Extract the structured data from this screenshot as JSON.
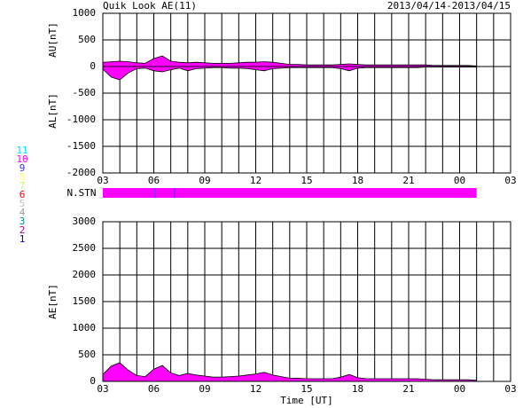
{
  "title": "Quik Look AE(11)",
  "date_range": "2013/04/14-2013/04/15",
  "station_legend": [
    {
      "label": "11",
      "color": "#00e0ff"
    },
    {
      "label": "10",
      "color": "#ff00ff"
    },
    {
      "label": "9",
      "color": "#3030ff"
    },
    {
      "label": "8",
      "color": "#ffff80"
    },
    {
      "label": "7",
      "color": "#c0ff60"
    },
    {
      "label": "6",
      "color": "#ff0000"
    },
    {
      "label": "5",
      "color": "#c0c0c0"
    },
    {
      "label": "4",
      "color": "#a0a0a0"
    },
    {
      "label": "3",
      "color": "#009090"
    },
    {
      "label": "2",
      "color": "#a000a0"
    },
    {
      "label": "1",
      "color": "#0000c0"
    }
  ],
  "stations": {
    "label": "N.STN",
    "segments": [
      {
        "start": 3,
        "end": 6.05,
        "count": 10
      },
      {
        "start": 6.05,
        "end": 6.12,
        "count": 9
      },
      {
        "start": 6.12,
        "end": 7.2,
        "count": 10
      },
      {
        "start": 7.2,
        "end": 7.27,
        "count": 9
      },
      {
        "start": 7.27,
        "end": 25,
        "count": 10
      }
    ]
  },
  "chart_data": [
    {
      "type": "area",
      "color": "#ff00ff",
      "grid": true,
      "x": [
        3,
        3.5,
        4,
        4.5,
        5,
        5.5,
        6,
        6.5,
        7,
        7.5,
        8,
        8.5,
        9,
        9.5,
        10,
        10.5,
        11,
        11.5,
        12,
        12.5,
        13,
        13.5,
        14,
        14.5,
        15,
        15.5,
        16,
        16.5,
        17,
        17.5,
        18,
        18.5,
        19,
        19.5,
        20,
        20.5,
        21,
        21.5,
        22,
        22.5,
        23,
        23.5,
        24,
        24.5,
        25
      ],
      "series": [
        {
          "name": "AU[nT]",
          "values": [
            80,
            90,
            100,
            90,
            70,
            60,
            150,
            200,
            100,
            80,
            70,
            80,
            70,
            60,
            60,
            60,
            70,
            80,
            80,
            90,
            80,
            60,
            40,
            40,
            30,
            30,
            30,
            30,
            40,
            50,
            40,
            30,
            30,
            30,
            30,
            30,
            30,
            30,
            30,
            20,
            20,
            20,
            20,
            20,
            10
          ]
        },
        {
          "name": "AL[nT]",
          "values": [
            -50,
            -200,
            -250,
            -120,
            -40,
            -30,
            -80,
            -100,
            -60,
            -30,
            -80,
            -40,
            -30,
            -20,
            -20,
            -30,
            -30,
            -40,
            -60,
            -80,
            -40,
            -30,
            -20,
            -20,
            -20,
            -20,
            -20,
            -20,
            -40,
            -80,
            -30,
            -20,
            -20,
            -20,
            -20,
            -20,
            -20,
            -20,
            -10,
            -10,
            -10,
            -10,
            -10,
            -10,
            -10
          ]
        }
      ],
      "xlim": [
        3,
        27
      ],
      "xticks": [
        {
          "value": 3,
          "label": "03"
        },
        {
          "value": 6,
          "label": "06"
        },
        {
          "value": 9,
          "label": "09"
        },
        12,
        15,
        18,
        21,
        {
          "value": 24,
          "label": "00"
        },
        {
          "value": 27,
          "label": "03"
        }
      ],
      "xgrid": [
        3,
        4,
        5,
        6,
        7,
        8,
        9,
        10,
        11,
        12,
        13,
        14,
        15,
        16,
        17,
        18,
        19,
        20,
        21,
        22,
        23,
        24,
        25,
        26,
        27
      ],
      "ylim": [
        -2000,
        1000
      ],
      "yticks": [
        -2000,
        -1500,
        -1000,
        -500,
        0,
        500,
        1000
      ]
    },
    {
      "type": "area",
      "color": "#ff00ff",
      "grid": true,
      "xlabel": "Time [UT]",
      "x": [
        3,
        3.5,
        4,
        4.5,
        5,
        5.5,
        6,
        6.5,
        7,
        7.5,
        8,
        8.5,
        9,
        9.5,
        10,
        10.5,
        11,
        11.5,
        12,
        12.5,
        13,
        13.5,
        14,
        14.5,
        15,
        15.5,
        16,
        16.5,
        17,
        17.5,
        18,
        18.5,
        19,
        19.5,
        20,
        20.5,
        21,
        21.5,
        22,
        22.5,
        23,
        23.5,
        24,
        24.5,
        25
      ],
      "series": [
        {
          "name": "AE[nT]",
          "values": [
            130,
            290,
            350,
            210,
            110,
            90,
            230,
            300,
            160,
            110,
            150,
            120,
            100,
            80,
            80,
            90,
            100,
            120,
            140,
            170,
            120,
            90,
            60,
            60,
            50,
            50,
            50,
            50,
            80,
            130,
            70,
            50,
            50,
            50,
            50,
            50,
            50,
            50,
            40,
            30,
            30,
            30,
            30,
            30,
            20
          ]
        }
      ],
      "xlim": [
        3,
        27
      ],
      "xticks": [
        {
          "value": 3,
          "label": "03"
        },
        {
          "value": 6,
          "label": "06"
        },
        {
          "value": 9,
          "label": "09"
        },
        12,
        15,
        18,
        21,
        {
          "value": 24,
          "label": "00"
        },
        {
          "value": 27,
          "label": "03"
        }
      ],
      "xgrid": [
        3,
        4,
        5,
        6,
        7,
        8,
        9,
        10,
        11,
        12,
        13,
        14,
        15,
        16,
        17,
        18,
        19,
        20,
        21,
        22,
        23,
        24,
        25,
        26,
        27
      ],
      "ylim": [
        0,
        3000
      ],
      "yticks": [
        0,
        500,
        1000,
        1500,
        2000,
        2500,
        3000
      ]
    }
  ]
}
